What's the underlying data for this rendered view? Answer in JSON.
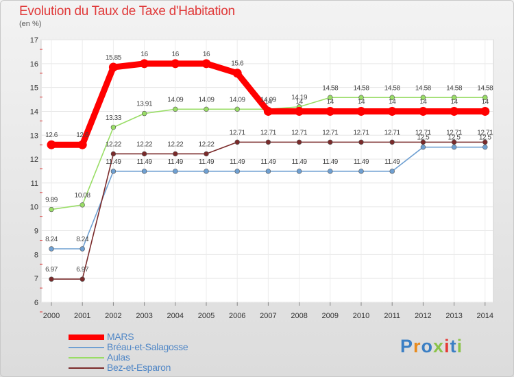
{
  "title": "Evolution du Taux de Taxe d'Habitation",
  "subtitle": "(en %)",
  "brand": {
    "text": "Proxiti",
    "colors": [
      "#3b7fc4",
      "#e88a1c",
      "#3b7fc4",
      "#8bc34a",
      "#e53935",
      "#3b7fc4",
      "#8bc34a"
    ]
  },
  "chart_data": {
    "type": "line",
    "title": "Evolution du Taux de Taxe d'Habitation",
    "ylabel": "(en %)",
    "xlabel": "",
    "ylim": [
      6,
      17
    ],
    "yticks": [
      "6",
      "7",
      "8",
      "9",
      "10",
      "11",
      "12",
      "13",
      "14",
      "15",
      "16",
      "17"
    ],
    "categories": [
      "2000",
      "2001",
      "2002",
      "2003",
      "2004",
      "2005",
      "2006",
      "2007",
      "2008",
      "2009",
      "2010",
      "2011",
      "2012",
      "2013",
      "2014"
    ],
    "legend_position": "bottom-left",
    "series": [
      {
        "name": "MARS",
        "color": "#ff0000",
        "values": [
          12.6,
          12.6,
          15.85,
          16,
          16,
          16,
          15.6,
          14,
          14,
          14,
          14,
          14,
          14,
          14,
          14
        ],
        "labels": [
          "12.6",
          "12.6",
          "15.85",
          "16",
          "16",
          "16",
          "15.6",
          "14",
          "14",
          "14",
          "14",
          "14",
          "14",
          "14",
          "14"
        ]
      },
      {
        "name": "Bréau-et-Salagosse",
        "color": "#6fa0d2",
        "values": [
          8.24,
          8.24,
          11.49,
          11.49,
          11.49,
          11.49,
          11.49,
          11.49,
          11.49,
          11.49,
          11.49,
          11.49,
          12.5,
          12.5,
          12.5
        ],
        "labels": [
          "8.24",
          "8.24",
          "11.49",
          "11.49",
          "11.49",
          "11.49",
          "11.49",
          "11.49",
          "11.49",
          "11.49",
          "11.49",
          "11.49",
          "12.5",
          "12.5",
          "12.5"
        ]
      },
      {
        "name": "Aulas",
        "color": "#99dd66",
        "values": [
          9.89,
          10.08,
          13.33,
          13.91,
          14.09,
          14.09,
          14.09,
          14.09,
          14.19,
          14.58,
          14.58,
          14.58,
          14.58,
          14.58,
          14.58
        ],
        "labels": [
          "9.89",
          "10.08",
          "13.33",
          "13.91",
          "14.09",
          "14.09",
          "14.09",
          "14.09",
          "14.19",
          "14.58",
          "14.58",
          "14.58",
          "14.58",
          "14.58",
          "14.58"
        ]
      },
      {
        "name": "Bez-et-Esparon",
        "color": "#7a2a2a",
        "values": [
          6.97,
          6.97,
          12.22,
          12.22,
          12.22,
          12.22,
          12.71,
          12.71,
          12.71,
          12.71,
          12.71,
          12.71,
          12.71,
          12.71,
          12.71
        ],
        "labels": [
          "6.97",
          "6.97",
          "12.22",
          "12.22",
          "12.22",
          "12.22",
          "12.71",
          "12.71",
          "12.71",
          "12.71",
          "12.71",
          "12.71",
          "12.71",
          "12.71",
          "12.71"
        ]
      }
    ]
  }
}
